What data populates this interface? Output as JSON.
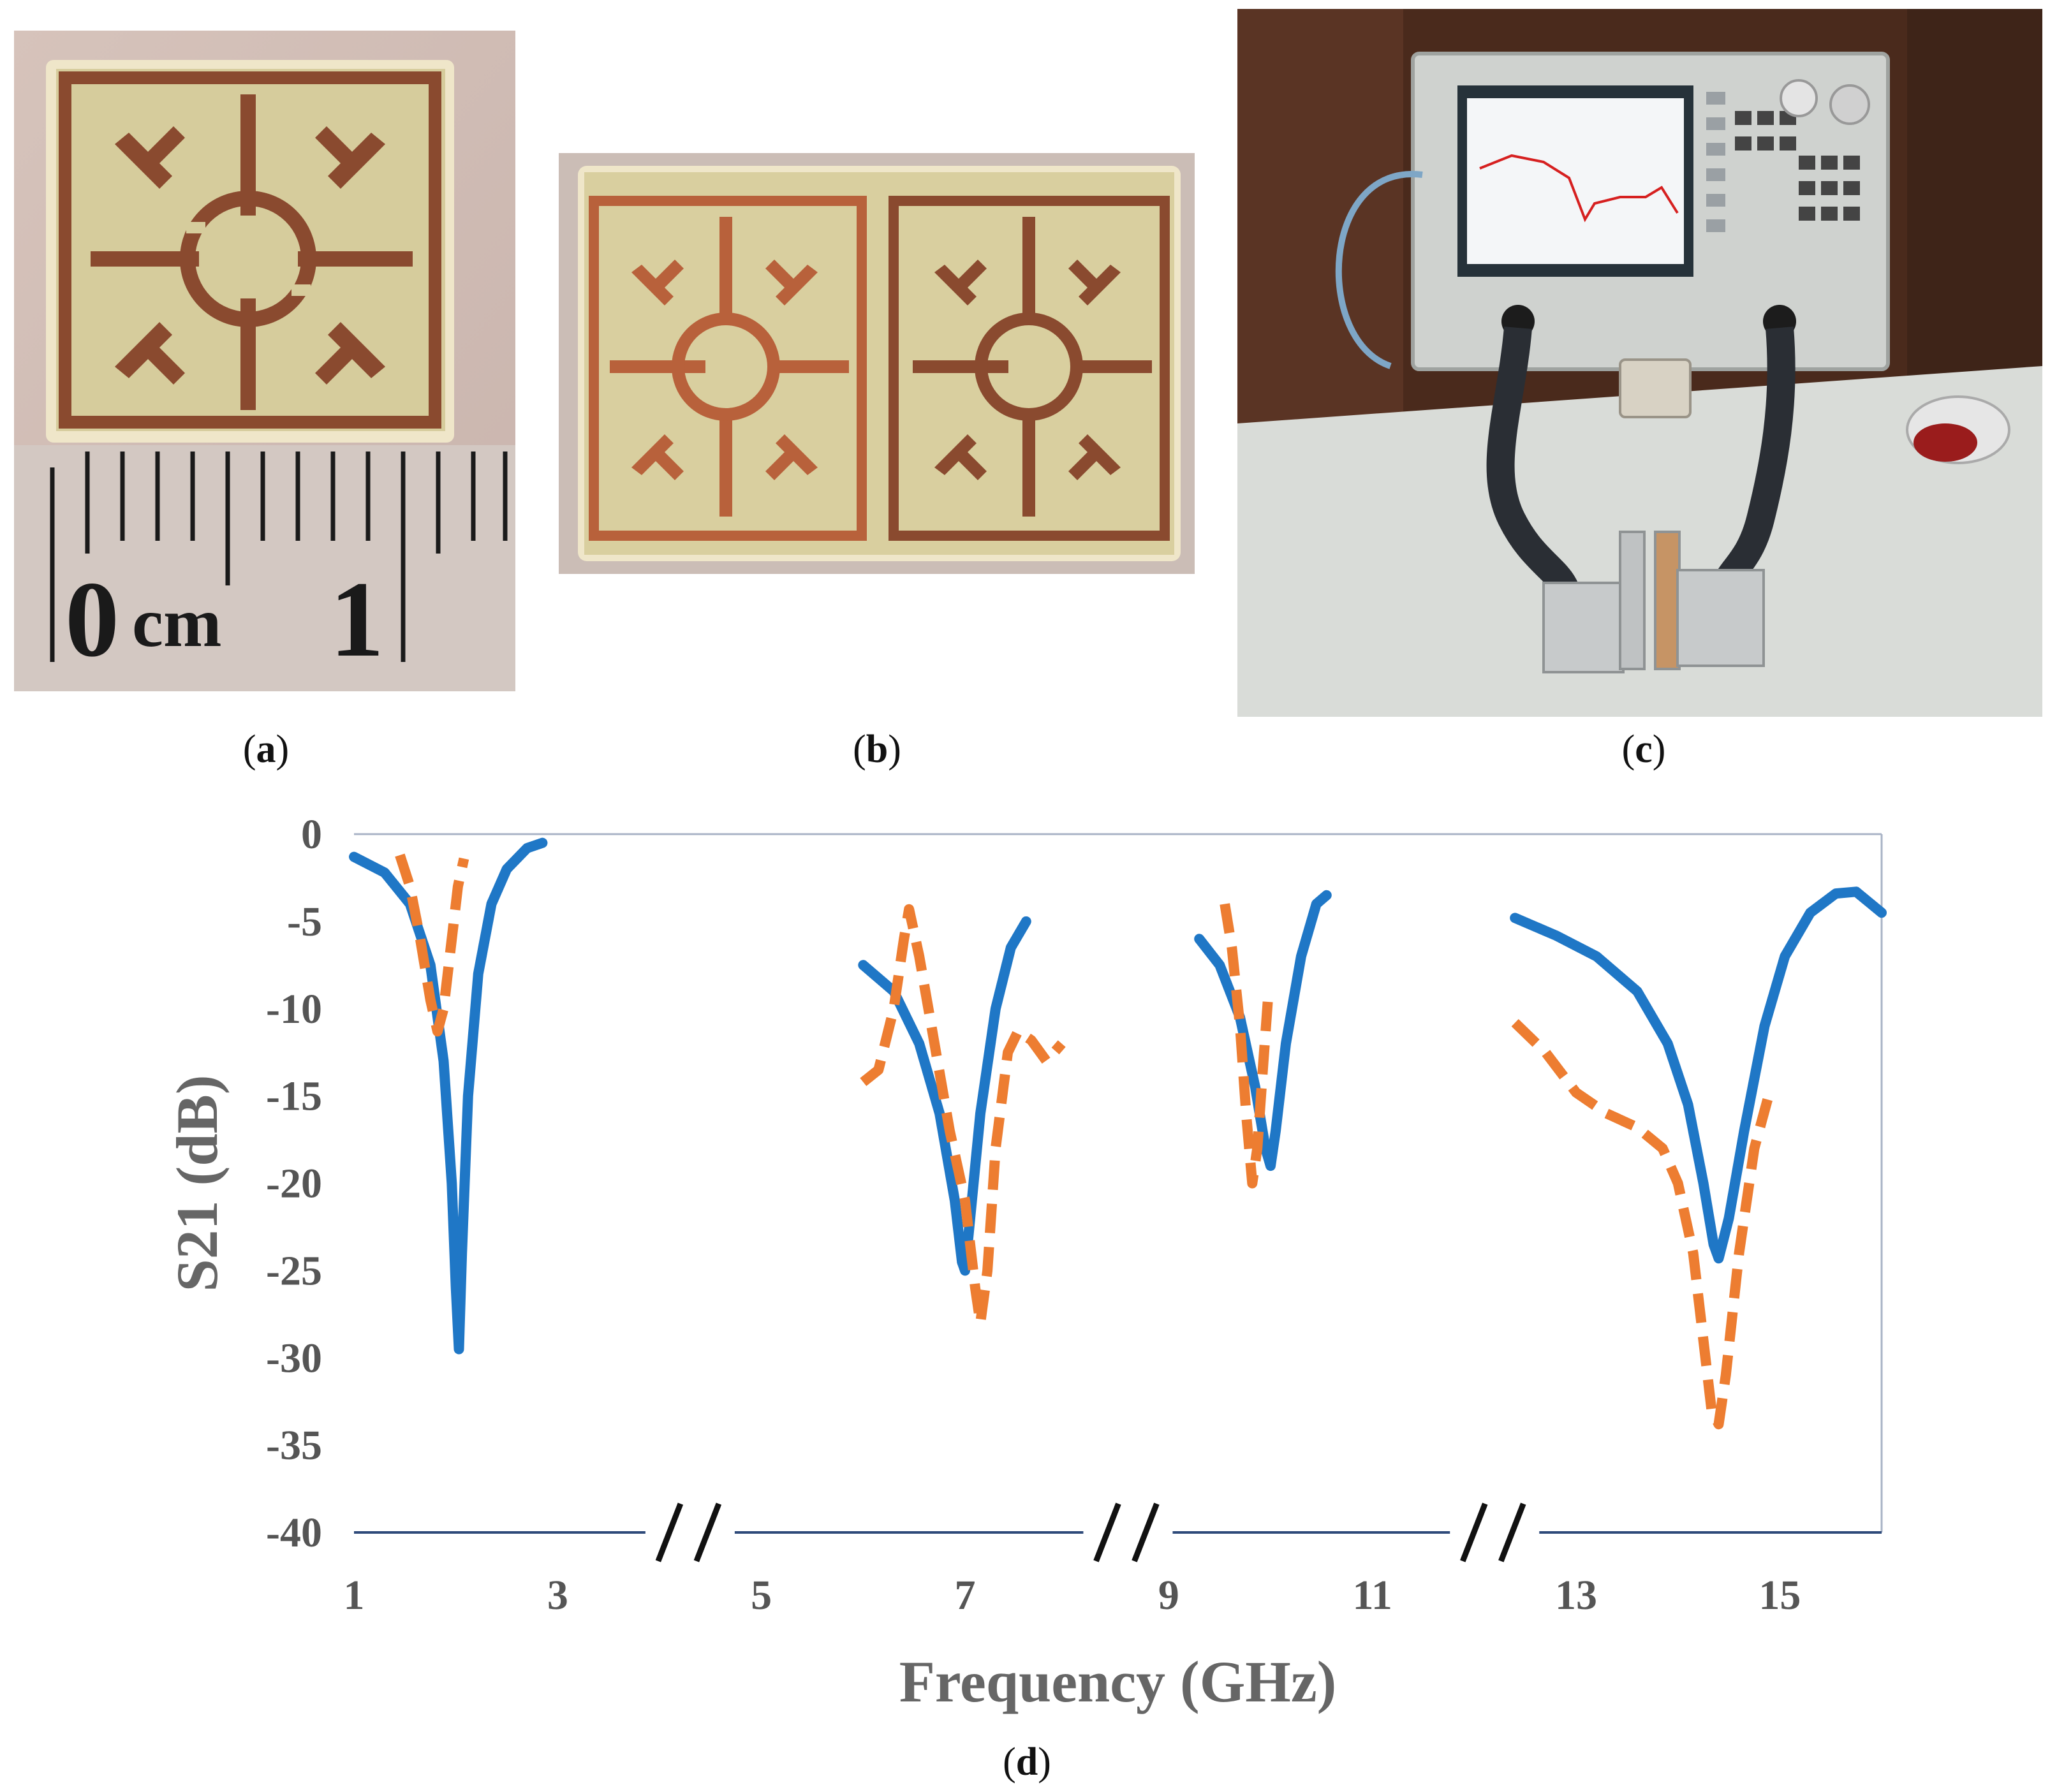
{
  "captions": {
    "a": "a",
    "b": "b",
    "c": "c",
    "d": "d"
  },
  "photo_a": {
    "ruler_zero": "0",
    "ruler_unit": "cm",
    "ruler_one": "1"
  },
  "chart_data": {
    "type": "line",
    "title": "",
    "xlabel": "Frequency (GHz)",
    "ylabel": "S21 (dB)",
    "xlim": [
      1,
      16
    ],
    "ylim": [
      -40,
      0
    ],
    "xticks": [
      "1",
      "3",
      "5",
      "7",
      "9",
      "11",
      "13",
      "15"
    ],
    "xtick_values": [
      1,
      3,
      5,
      7,
      9,
      11,
      13,
      15
    ],
    "yticks": [
      "0",
      "-5",
      "-10",
      "-15",
      "-20",
      "-25",
      "-30",
      "-35",
      "-40"
    ],
    "ytick_values": [
      0,
      -5,
      -10,
      -15,
      -20,
      -25,
      -30,
      -35,
      -40
    ],
    "axis_breaks_x": [
      4.3,
      8.6,
      12.2
    ],
    "grid": false,
    "legend": "none",
    "colors": {
      "simulated": "#1f77c6",
      "measured": "#ed7d31",
      "axis": "#2e4a7a"
    },
    "series": [
      {
        "style": "solid",
        "color": "#1f77c6",
        "segments": [
          [
            [
              1.0,
              -1.3
            ],
            [
              1.3,
              -2.2
            ],
            [
              1.55,
              -4.0
            ],
            [
              1.75,
              -7.5
            ],
            [
              1.88,
              -13.0
            ],
            [
              1.96,
              -20.0
            ],
            [
              2.0,
              -26.0
            ],
            [
              2.03,
              -29.5
            ],
            [
              2.06,
              -24.0
            ],
            [
              2.12,
              -15.0
            ],
            [
              2.22,
              -8.0
            ],
            [
              2.35,
              -4.0
            ],
            [
              2.5,
              -2.0
            ],
            [
              2.7,
              -0.8
            ],
            [
              2.85,
              -0.5
            ]
          ],
          [
            [
              6.0,
              -7.5
            ],
            [
              6.3,
              -9.0
            ],
            [
              6.55,
              -12.0
            ],
            [
              6.75,
              -16.0
            ],
            [
              6.9,
              -21.0
            ],
            [
              6.97,
              -24.5
            ],
            [
              7.0,
              -25.0
            ],
            [
              7.05,
              -22.0
            ],
            [
              7.15,
              -16.0
            ],
            [
              7.3,
              -10.0
            ],
            [
              7.45,
              -6.5
            ],
            [
              7.6,
              -5.0
            ]
          ],
          [
            [
              9.3,
              -6.0
            ],
            [
              9.5,
              -7.5
            ],
            [
              9.7,
              -10.5
            ],
            [
              9.85,
              -14.5
            ],
            [
              9.95,
              -18.0
            ],
            [
              10.0,
              -19.0
            ],
            [
              10.05,
              -17.0
            ],
            [
              10.15,
              -12.0
            ],
            [
              10.3,
              -7.0
            ],
            [
              10.45,
              -4.0
            ],
            [
              10.55,
              -3.5
            ]
          ],
          [
            [
              12.4,
              -4.8
            ],
            [
              12.8,
              -5.8
            ],
            [
              13.2,
              -7.0
            ],
            [
              13.6,
              -9.0
            ],
            [
              13.9,
              -12.0
            ],
            [
              14.1,
              -15.5
            ],
            [
              14.25,
              -20.0
            ],
            [
              14.35,
              -23.5
            ],
            [
              14.4,
              -24.3
            ],
            [
              14.5,
              -22.0
            ],
            [
              14.65,
              -17.0
            ],
            [
              14.85,
              -11.0
            ],
            [
              15.05,
              -7.0
            ],
            [
              15.3,
              -4.5
            ],
            [
              15.55,
              -3.4
            ],
            [
              15.75,
              -3.3
            ],
            [
              16.0,
              -4.5
            ]
          ]
        ]
      },
      {
        "style": "dashed",
        "color": "#ed7d31",
        "segments": [
          [
            [
              1.45,
              -1.2
            ],
            [
              1.55,
              -3.0
            ],
            [
              1.65,
              -6.0
            ],
            [
              1.75,
              -9.5
            ],
            [
              1.82,
              -11.3
            ],
            [
              1.88,
              -10.0
            ],
            [
              1.95,
              -6.5
            ],
            [
              2.02,
              -3.0
            ],
            [
              2.08,
              -1.4
            ]
          ],
          [
            [
              6.0,
              -14.2
            ],
            [
              6.15,
              -13.5
            ],
            [
              6.3,
              -10.0
            ],
            [
              6.4,
              -6.0
            ],
            [
              6.45,
              -4.3
            ],
            [
              6.55,
              -7.0
            ],
            [
              6.7,
              -12.0
            ],
            [
              6.85,
              -17.0
            ],
            [
              7.0,
              -21.0
            ],
            [
              7.1,
              -26.0
            ],
            [
              7.15,
              -28.0
            ],
            [
              7.22,
              -25.0
            ],
            [
              7.3,
              -18.0
            ],
            [
              7.42,
              -12.5
            ],
            [
              7.52,
              -11.3
            ],
            [
              7.65,
              -11.8
            ],
            [
              7.8,
              -13.0
            ],
            [
              7.95,
              -12.0
            ]
          ],
          [
            [
              9.55,
              -4.0
            ],
            [
              9.62,
              -6.5
            ],
            [
              9.7,
              -11.0
            ],
            [
              9.76,
              -16.0
            ],
            [
              9.82,
              -20.0
            ],
            [
              9.87,
              -18.0
            ],
            [
              9.93,
              -13.0
            ],
            [
              9.98,
              -9.0
            ]
          ],
          [
            [
              12.4,
              -10.8
            ],
            [
              12.7,
              -12.5
            ],
            [
              13.0,
              -14.8
            ],
            [
              13.3,
              -16.0
            ],
            [
              13.6,
              -16.8
            ],
            [
              13.85,
              -18.0
            ],
            [
              14.0,
              -20.0
            ],
            [
              14.15,
              -24.0
            ],
            [
              14.25,
              -29.0
            ],
            [
              14.33,
              -33.0
            ],
            [
              14.4,
              -33.8
            ],
            [
              14.47,
              -31.0
            ],
            [
              14.6,
              -24.0
            ],
            [
              14.75,
              -18.0
            ],
            [
              14.88,
              -15.2
            ]
          ]
        ]
      }
    ]
  }
}
